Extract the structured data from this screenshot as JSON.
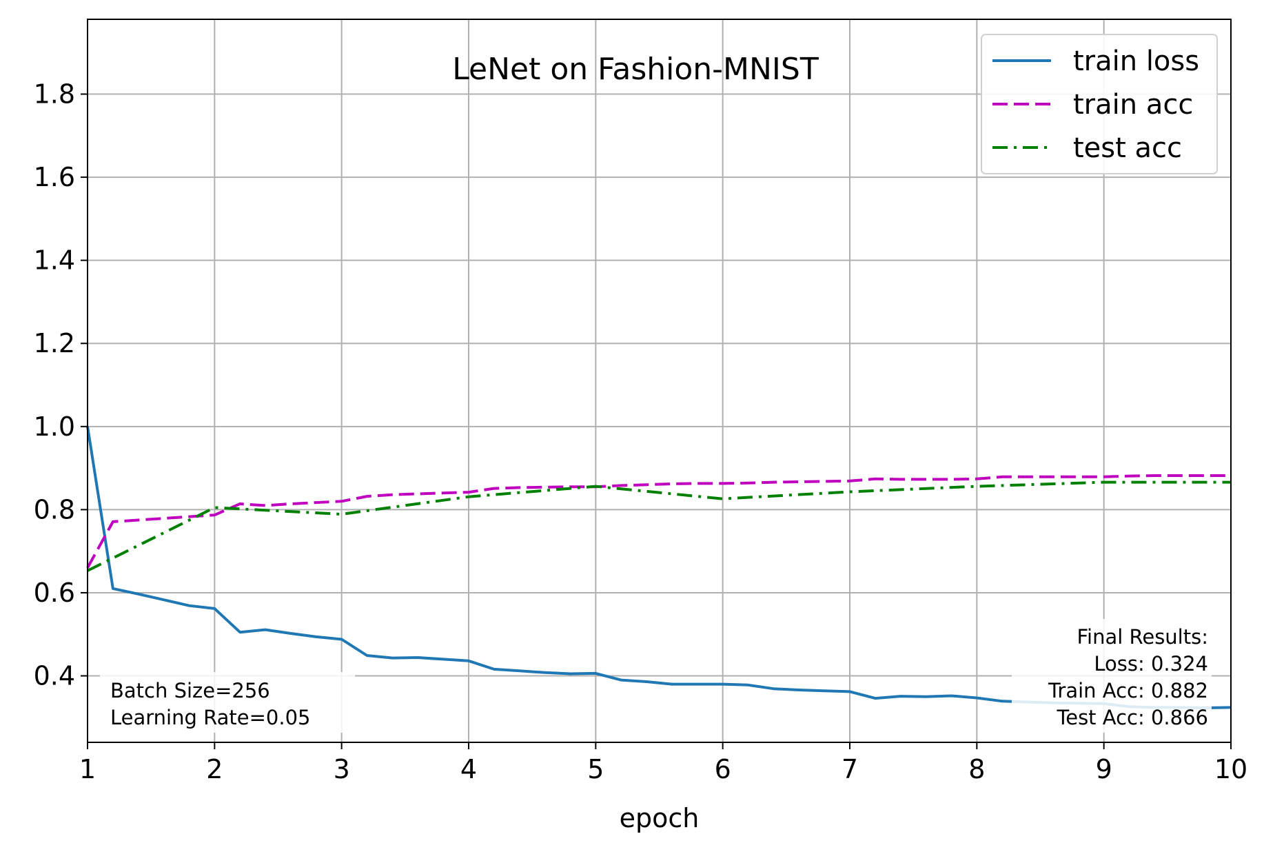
{
  "chart_data": {
    "type": "line",
    "title": "LeNet on Fashion-MNIST",
    "xlabel": "epoch",
    "ylabel": "",
    "xlim": [
      1,
      10
    ],
    "ylim": [
      0.24,
      1.98
    ],
    "xticks": [
      1,
      2,
      3,
      4,
      5,
      6,
      7,
      8,
      9,
      10
    ],
    "yticks": [
      0.4,
      0.6,
      0.8,
      1.0,
      1.2,
      1.4,
      1.6,
      1.8
    ],
    "ytick_labels": [
      "0.4",
      "0.6",
      "0.8",
      "1.0",
      "1.2",
      "1.4",
      "1.6",
      "1.8"
    ],
    "grid": true,
    "legend_position": "top-right",
    "series": [
      {
        "name": "train loss",
        "color": "#1f77b4",
        "style": "solid",
        "x": [
          1.0,
          1.2,
          1.4,
          1.6,
          1.8,
          2.0,
          2.2,
          2.4,
          2.6,
          2.8,
          3.0,
          3.2,
          3.4,
          3.6,
          3.8,
          4.0,
          4.2,
          4.4,
          4.6,
          4.8,
          5.0,
          5.2,
          5.4,
          5.6,
          5.8,
          6.0,
          6.2,
          6.4,
          6.6,
          6.8,
          7.0,
          7.2,
          7.4,
          7.6,
          7.8,
          8.0,
          8.2,
          8.4,
          8.6,
          8.8,
          9.0,
          9.2,
          9.4,
          9.6,
          9.8,
          10.0
        ],
        "values": [
          1.0,
          0.61,
          0.597,
          0.583,
          0.569,
          0.562,
          0.505,
          0.511,
          0.502,
          0.494,
          0.488,
          0.449,
          0.443,
          0.444,
          0.44,
          0.436,
          0.416,
          0.412,
          0.408,
          0.405,
          0.406,
          0.39,
          0.386,
          0.38,
          0.38,
          0.38,
          0.378,
          0.369,
          0.366,
          0.364,
          0.362,
          0.346,
          0.351,
          0.35,
          0.352,
          0.347,
          0.339,
          0.337,
          0.335,
          0.334,
          0.333,
          0.326,
          0.324,
          0.324,
          0.323,
          0.324
        ]
      },
      {
        "name": "train acc",
        "color": "#bf00bf",
        "style": "dashed",
        "x": [
          1.0,
          1.2,
          1.4,
          1.6,
          1.8,
          2.0,
          2.2,
          2.4,
          2.6,
          2.8,
          3.0,
          3.2,
          3.4,
          3.6,
          3.8,
          4.0,
          4.2,
          4.4,
          4.6,
          4.8,
          5.0,
          5.2,
          5.4,
          5.6,
          5.8,
          6.0,
          6.2,
          6.4,
          6.6,
          6.8,
          7.0,
          7.2,
          7.4,
          7.6,
          7.8,
          8.0,
          8.2,
          8.4,
          8.6,
          8.8,
          9.0,
          9.2,
          9.4,
          9.6,
          9.8,
          10.0
        ],
        "values": [
          0.66,
          0.771,
          0.775,
          0.779,
          0.783,
          0.787,
          0.814,
          0.81,
          0.814,
          0.817,
          0.82,
          0.832,
          0.836,
          0.838,
          0.84,
          0.842,
          0.851,
          0.853,
          0.854,
          0.855,
          0.855,
          0.858,
          0.86,
          0.862,
          0.863,
          0.863,
          0.864,
          0.866,
          0.867,
          0.868,
          0.869,
          0.874,
          0.873,
          0.873,
          0.873,
          0.874,
          0.879,
          0.879,
          0.879,
          0.879,
          0.879,
          0.881,
          0.882,
          0.882,
          0.882,
          0.882
        ]
      },
      {
        "name": "test acc",
        "color": "#008000",
        "style": "dashdot",
        "x": [
          1,
          2,
          3,
          4,
          5,
          6,
          7,
          8,
          9,
          10
        ],
        "values": [
          0.653,
          0.805,
          0.789,
          0.831,
          0.856,
          0.826,
          0.843,
          0.856,
          0.866,
          0.866
        ]
      }
    ],
    "annotations": {
      "params_lines": [
        "Batch Size=256",
        "Learning Rate=0.05"
      ],
      "results_lines": [
        "Final Results:",
        "Loss: 0.324",
        "Train Acc: 0.882",
        "Test Acc: 0.866"
      ]
    }
  }
}
